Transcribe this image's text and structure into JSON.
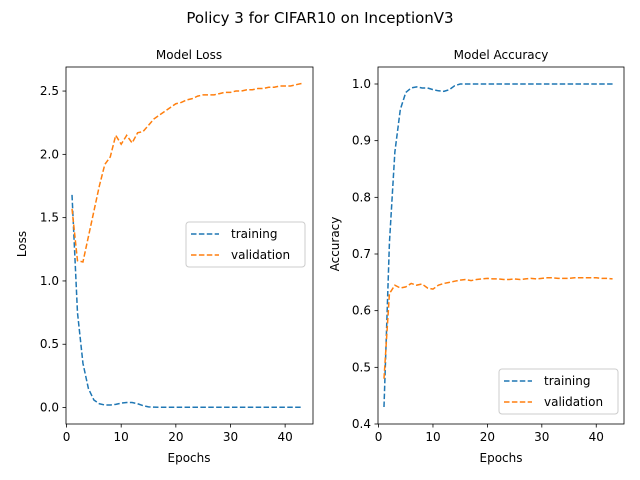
{
  "figure": {
    "title": "Policy 3 for CIFAR10 on InceptionV3"
  },
  "chart_data": [
    {
      "type": "line",
      "title": "Model Loss",
      "xlabel": "Epochs",
      "ylabel": "Loss",
      "xlim": [
        -0.1,
        45.1
      ],
      "ylim": [
        -0.13,
        2.69
      ],
      "xticks": [
        0,
        10,
        20,
        30,
        40
      ],
      "yticks": [
        0.0,
        0.5,
        1.0,
        1.5,
        2.0,
        2.5
      ],
      "ytick_labels": [
        "0.0",
        "0.5",
        "1.0",
        "1.5",
        "2.0",
        "2.5"
      ],
      "grid": false,
      "legend": "center-right",
      "x": [
        1,
        2,
        3,
        4,
        5,
        6,
        7,
        8,
        9,
        10,
        11,
        12,
        13,
        14,
        15,
        16,
        17,
        18,
        19,
        20,
        21,
        22,
        23,
        24,
        25,
        26,
        27,
        28,
        29,
        30,
        31,
        32,
        33,
        34,
        35,
        36,
        37,
        38,
        39,
        40,
        41,
        42,
        43
      ],
      "series": [
        {
          "name": "training",
          "color": "#1f77b4",
          "values": [
            1.68,
            0.75,
            0.35,
            0.15,
            0.06,
            0.03,
            0.02,
            0.02,
            0.025,
            0.035,
            0.04,
            0.04,
            0.03,
            0.015,
            0.005,
            0.003,
            0.002,
            0.002,
            0.002,
            0.002,
            0.002,
            0.002,
            0.002,
            0.002,
            0.002,
            0.002,
            0.002,
            0.002,
            0.002,
            0.002,
            0.002,
            0.002,
            0.002,
            0.002,
            0.002,
            0.002,
            0.002,
            0.002,
            0.002,
            0.002,
            0.002,
            0.002,
            0.002
          ]
        },
        {
          "name": "validation",
          "color": "#ff7f0e",
          "values": [
            1.57,
            1.16,
            1.15,
            1.35,
            1.55,
            1.75,
            1.92,
            1.98,
            2.15,
            2.08,
            2.15,
            2.09,
            2.17,
            2.18,
            2.23,
            2.28,
            2.31,
            2.34,
            2.37,
            2.4,
            2.41,
            2.43,
            2.44,
            2.46,
            2.47,
            2.47,
            2.47,
            2.48,
            2.49,
            2.49,
            2.5,
            2.5,
            2.51,
            2.51,
            2.52,
            2.52,
            2.53,
            2.53,
            2.54,
            2.54,
            2.54,
            2.55,
            2.56
          ]
        }
      ]
    },
    {
      "type": "line",
      "title": "Model Accuracy",
      "xlabel": "Epochs",
      "ylabel": "Accuracy",
      "xlim": [
        -0.1,
        45.1
      ],
      "ylim": [
        0.4,
        1.03
      ],
      "xticks": [
        0,
        10,
        20,
        30,
        40
      ],
      "yticks": [
        0.4,
        0.5,
        0.6,
        0.7,
        0.8,
        0.9,
        1.0
      ],
      "ytick_labels": [
        "0.4",
        "0.5",
        "0.6",
        "0.7",
        "0.8",
        "0.9",
        "1.0"
      ],
      "grid": false,
      "legend": "lower-right",
      "x": [
        1,
        2,
        3,
        4,
        5,
        6,
        7,
        8,
        9,
        10,
        11,
        12,
        13,
        14,
        15,
        16,
        17,
        18,
        19,
        20,
        21,
        22,
        23,
        24,
        25,
        26,
        27,
        28,
        29,
        30,
        31,
        32,
        33,
        34,
        35,
        36,
        37,
        38,
        39,
        40,
        41,
        42,
        43
      ],
      "series": [
        {
          "name": "training",
          "color": "#1f77b4",
          "values": [
            0.43,
            0.72,
            0.88,
            0.955,
            0.985,
            0.993,
            0.995,
            0.993,
            0.993,
            0.99,
            0.988,
            0.987,
            0.99,
            0.997,
            1.0,
            1.0,
            1.0,
            1.0,
            1.0,
            1.0,
            1.0,
            1.0,
            1.0,
            1.0,
            1.0,
            1.0,
            1.0,
            1.0,
            1.0,
            1.0,
            1.0,
            1.0,
            1.0,
            1.0,
            1.0,
            1.0,
            1.0,
            1.0,
            1.0,
            1.0,
            1.0,
            1.0,
            1.0
          ]
        },
        {
          "name": "validation",
          "color": "#ff7f0e",
          "values": [
            0.48,
            0.63,
            0.645,
            0.64,
            0.642,
            0.648,
            0.645,
            0.647,
            0.64,
            0.638,
            0.645,
            0.648,
            0.65,
            0.652,
            0.654,
            0.655,
            0.653,
            0.655,
            0.656,
            0.657,
            0.656,
            0.656,
            0.655,
            0.655,
            0.656,
            0.655,
            0.656,
            0.657,
            0.656,
            0.657,
            0.658,
            0.658,
            0.657,
            0.657,
            0.657,
            0.658,
            0.658,
            0.658,
            0.658,
            0.658,
            0.657,
            0.657,
            0.656
          ]
        }
      ]
    }
  ]
}
